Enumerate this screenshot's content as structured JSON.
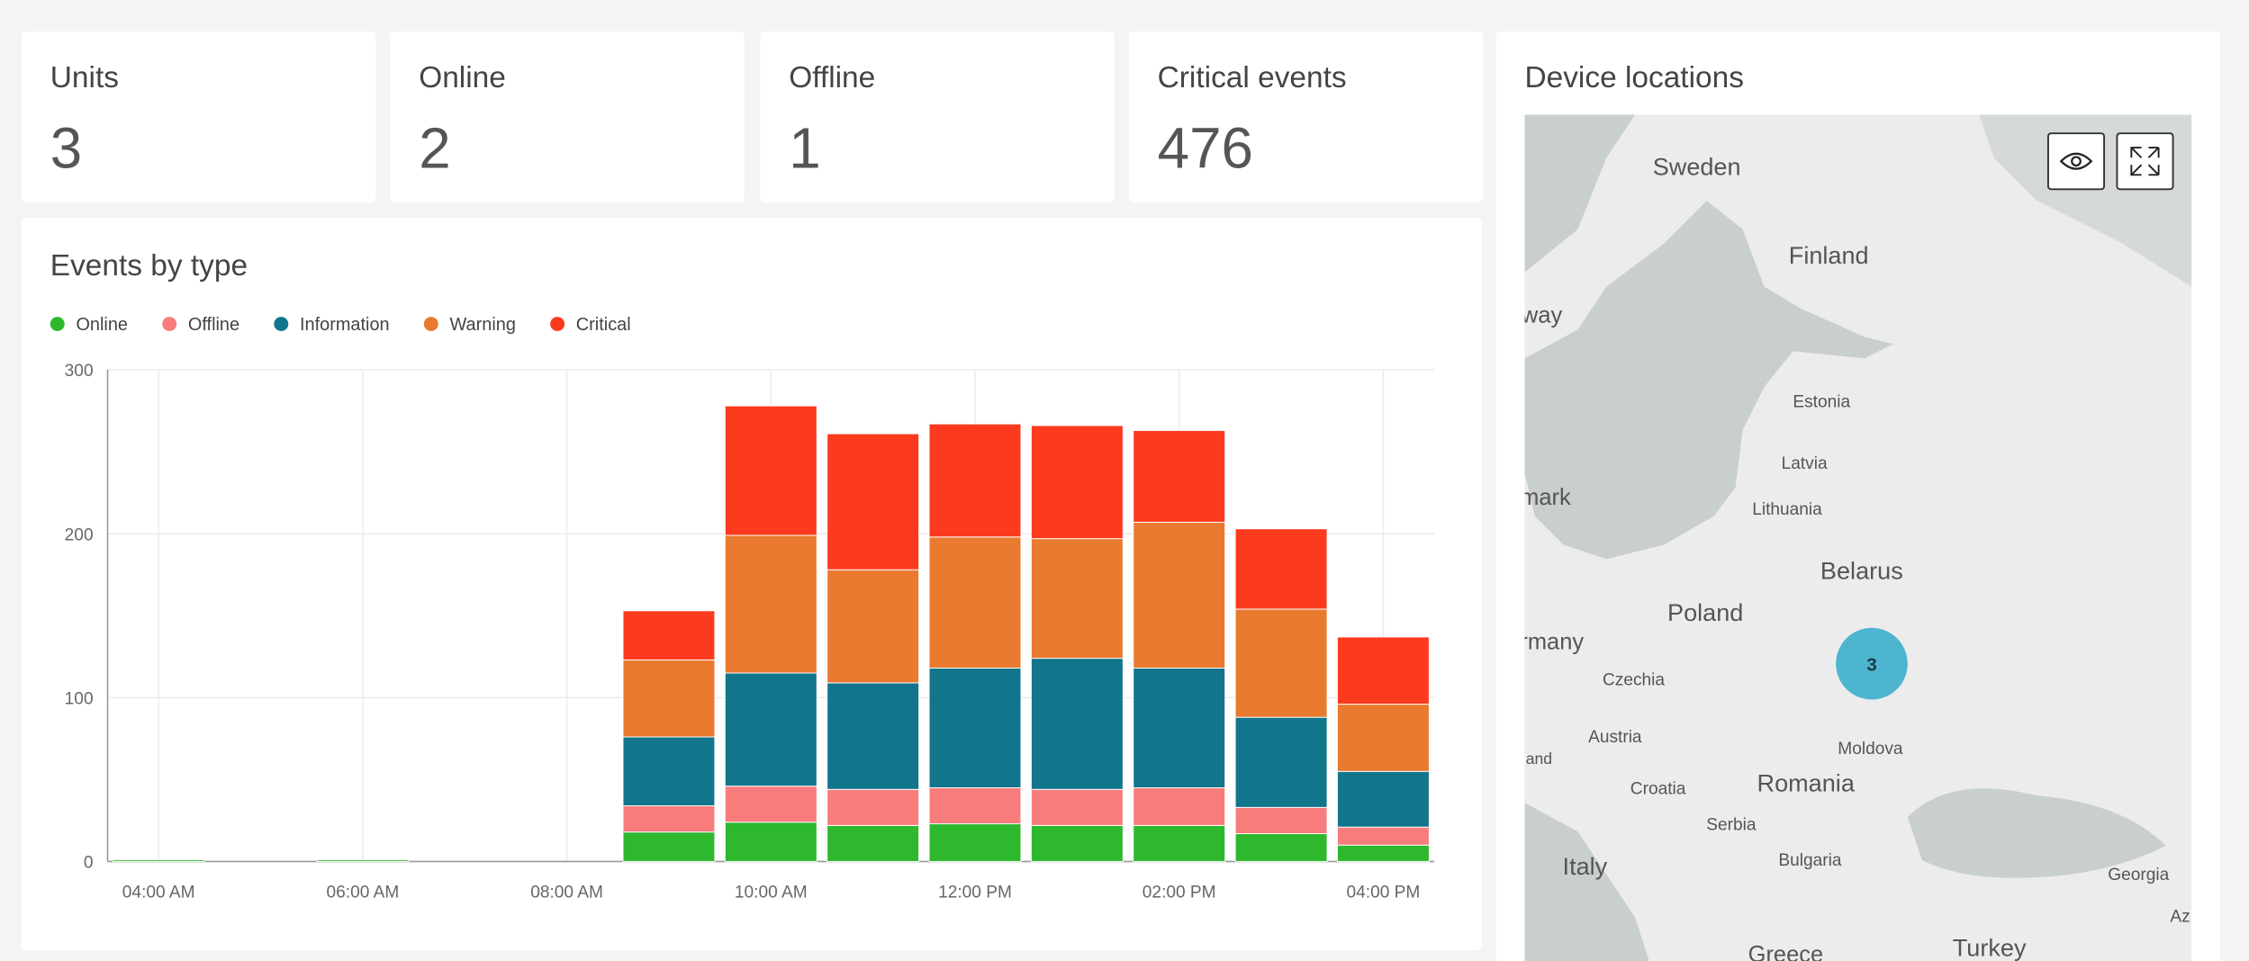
{
  "kpis": [
    {
      "label": "Units",
      "value": 3
    },
    {
      "label": "Online",
      "value": 2
    },
    {
      "label": "Offline",
      "value": 1
    },
    {
      "label": "Critical events",
      "value": 476
    }
  ],
  "chart_data": {
    "type": "stacked_bar",
    "title": "Events by type",
    "categories": [
      "04:00 AM",
      null,
      "06:00 AM",
      null,
      "08:00 AM",
      null,
      "10:00 AM",
      null,
      "12:00 PM",
      null,
      "02:00 PM",
      null,
      "04:00 PM"
    ],
    "series": [
      {
        "name": "Online",
        "color": "#2eb82e",
        "values": [
          1,
          0,
          1,
          0,
          0,
          18,
          24,
          22,
          23,
          22,
          22,
          17,
          10
        ]
      },
      {
        "name": "Offline",
        "color": "#f87c7c",
        "values": [
          0,
          0,
          0,
          0,
          0,
          16,
          22,
          22,
          22,
          22,
          23,
          16,
          11
        ]
      },
      {
        "name": "Information",
        "color": "#12758c",
        "values": [
          0,
          0,
          0,
          0,
          0,
          42,
          69,
          65,
          73,
          80,
          73,
          55,
          34
        ]
      },
      {
        "name": "Warning",
        "color": "#e97a30",
        "values": [
          0,
          0,
          0,
          0,
          0,
          47,
          84,
          69,
          80,
          73,
          89,
          66,
          41
        ]
      },
      {
        "name": "Critical",
        "color": "#fc3a1d",
        "values": [
          0,
          0,
          0,
          0,
          0,
          30,
          79,
          83,
          69,
          69,
          56,
          49,
          41
        ]
      }
    ],
    "ylim": [
      0,
      300
    ],
    "yticks": [
      0,
      100,
      200,
      300
    ],
    "grid": true
  },
  "map": {
    "title": "Device locations",
    "cluster": 3,
    "places": [
      "Sweden",
      "Finland",
      "way",
      "Estonia",
      "Latvia",
      "nmark",
      "Lithuania",
      "Belarus",
      "Poland",
      "rmany",
      "Czechia",
      "Austria",
      "and",
      "Moldova",
      "Croatia",
      "Romania",
      "Serbia",
      "Bulgaria",
      "Italy",
      "Georgia",
      "Greece",
      "Turkey",
      "Az"
    ]
  }
}
